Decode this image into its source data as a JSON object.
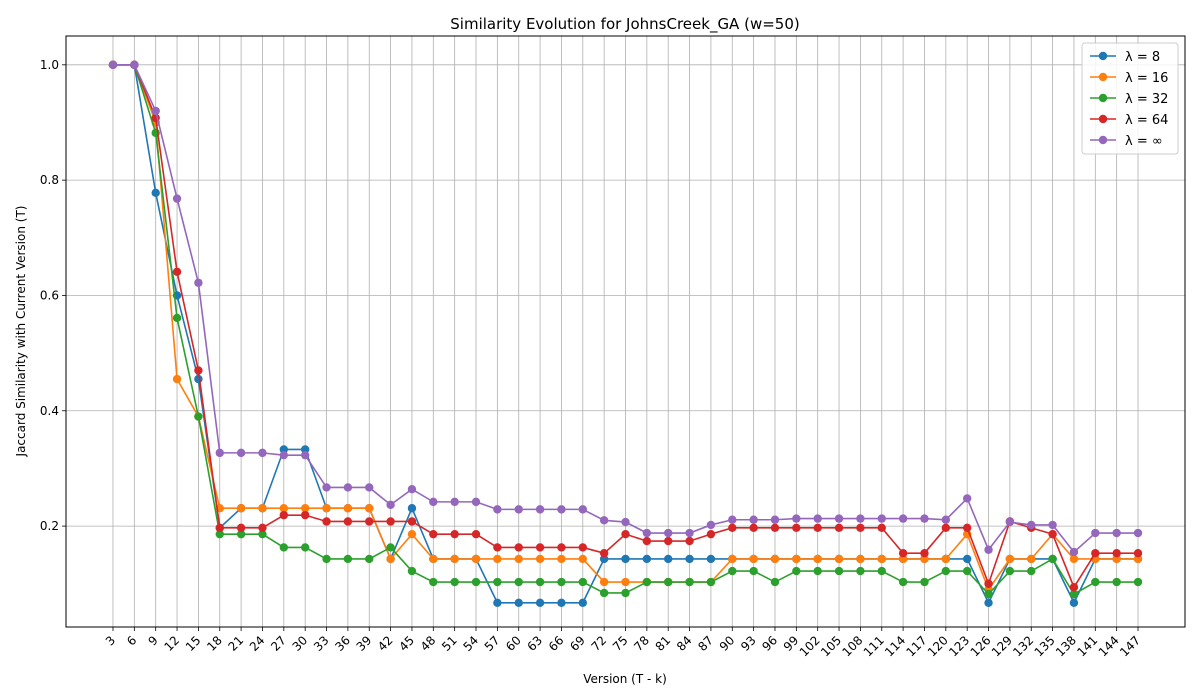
{
  "chart_data": {
    "type": "line",
    "title": "Similarity Evolution for JohnsCreek_GA (w=50)",
    "xlabel": "Version (T - k)",
    "ylabel": "Jaccard Similarity with Current Version (T)",
    "x": [
      3,
      6,
      9,
      12,
      15,
      18,
      21,
      24,
      27,
      30,
      33,
      36,
      39,
      42,
      45,
      48,
      51,
      54,
      57,
      60,
      63,
      66,
      69,
      72,
      75,
      78,
      81,
      84,
      87,
      90,
      93,
      96,
      99,
      102,
      105,
      108,
      111,
      114,
      117,
      120,
      123,
      126,
      129,
      132,
      135,
      138,
      141,
      144,
      147
    ],
    "yticks": [
      0.2,
      0.4,
      0.6,
      0.8,
      1.0
    ],
    "ylim": [
      0.025,
      1.05
    ],
    "grid": true,
    "legend_position": "top-right",
    "series": [
      {
        "name": "λ = 8",
        "color": "#1f77b4",
        "values": [
          1.0,
          1.0,
          0.778,
          0.6,
          0.455,
          0.197,
          0.231,
          0.231,
          0.333,
          0.333,
          0.231,
          0.231,
          0.231,
          0.143,
          0.231,
          0.143,
          0.143,
          0.143,
          0.067,
          0.067,
          0.067,
          0.067,
          0.067,
          0.143,
          0.143,
          0.143,
          0.143,
          0.143,
          0.143,
          0.143,
          0.143,
          0.143,
          0.143,
          0.143,
          0.143,
          0.143,
          0.143,
          0.143,
          0.143,
          0.143,
          0.143,
          0.067,
          0.143,
          0.143,
          0.143,
          0.067,
          0.143,
          0.143,
          0.143
        ]
      },
      {
        "name": "λ = 16",
        "color": "#ff7f0e",
        "values": [
          1.0,
          1.0,
          0.9,
          0.455,
          0.39,
          0.231,
          0.231,
          0.231,
          0.231,
          0.231,
          0.231,
          0.231,
          0.231,
          0.143,
          0.186,
          0.143,
          0.143,
          0.143,
          0.143,
          0.143,
          0.143,
          0.143,
          0.143,
          0.103,
          0.103,
          0.103,
          0.103,
          0.103,
          0.103,
          0.143,
          0.143,
          0.143,
          0.143,
          0.143,
          0.143,
          0.143,
          0.143,
          0.143,
          0.143,
          0.143,
          0.186,
          0.09,
          0.143,
          0.143,
          0.186,
          0.143,
          0.143,
          0.143,
          0.143
        ]
      },
      {
        "name": "λ = 32",
        "color": "#2ca02c",
        "values": [
          1.0,
          1.0,
          0.882,
          0.561,
          0.39,
          0.186,
          0.186,
          0.186,
          0.163,
          0.163,
          0.143,
          0.143,
          0.143,
          0.163,
          0.122,
          0.103,
          0.103,
          0.103,
          0.103,
          0.103,
          0.103,
          0.103,
          0.103,
          0.084,
          0.084,
          0.103,
          0.103,
          0.103,
          0.103,
          0.122,
          0.122,
          0.103,
          0.122,
          0.122,
          0.122,
          0.122,
          0.122,
          0.103,
          0.103,
          0.122,
          0.122,
          0.082,
          0.122,
          0.122,
          0.143,
          0.082,
          0.103,
          0.103,
          0.103
        ]
      },
      {
        "name": "λ = 64",
        "color": "#d62728",
        "values": [
          1.0,
          1.0,
          0.908,
          0.641,
          0.47,
          0.197,
          0.197,
          0.197,
          0.219,
          0.219,
          0.208,
          0.208,
          0.208,
          0.208,
          0.208,
          0.186,
          0.186,
          0.186,
          0.163,
          0.163,
          0.163,
          0.163,
          0.163,
          0.153,
          0.186,
          0.174,
          0.174,
          0.174,
          0.186,
          0.197,
          0.197,
          0.197,
          0.197,
          0.197,
          0.197,
          0.197,
          0.197,
          0.153,
          0.153,
          0.197,
          0.197,
          0.1,
          0.208,
          0.197,
          0.186,
          0.094,
          0.153,
          0.153,
          0.153
        ]
      },
      {
        "name": "λ = ∞",
        "color": "#9467bd",
        "values": [
          1.0,
          1.0,
          0.92,
          0.768,
          0.622,
          0.327,
          0.327,
          0.327,
          0.323,
          0.323,
          0.267,
          0.267,
          0.267,
          0.237,
          0.264,
          0.242,
          0.242,
          0.242,
          0.229,
          0.229,
          0.229,
          0.229,
          0.229,
          0.21,
          0.207,
          0.188,
          0.188,
          0.188,
          0.202,
          0.211,
          0.211,
          0.211,
          0.213,
          0.213,
          0.213,
          0.213,
          0.213,
          0.213,
          0.213,
          0.211,
          0.248,
          0.159,
          0.207,
          0.202,
          0.202,
          0.155,
          0.188,
          0.188,
          0.188
        ]
      }
    ]
  }
}
